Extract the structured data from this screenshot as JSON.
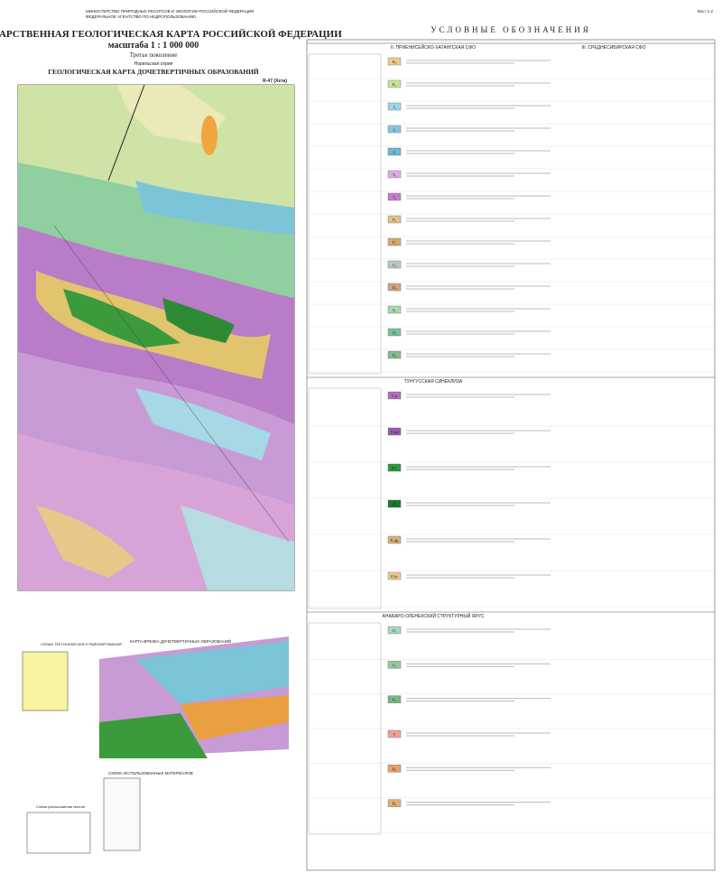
{
  "header": {
    "ministry": "МИНИСТЕРСТВО ПРИРОДНЫХ РЕСУРСОВ И ЭКОЛОГИИ РОССИЙСКОЙ ФЕДЕРАЦИИ",
    "agency": "ФЕДЕРАЛЬНОЕ АГЕНТСТВО ПО НЕДРОПОЛЬЗОВАНИЮ",
    "sheet": "Лист 1-2",
    "title": "ГОСУДАРСТВЕННАЯ ГЕОЛОГИЧЕСКАЯ КАРТА РОССИЙСКОЙ ФЕДЕРАЦИИ",
    "scale": "масштаба 1 : 1 000 000",
    "generation": "Третье поколение",
    "series": "Норильская серия",
    "map_title": "ГЕОЛОГИЧЕСКАЯ КАРТА ДОЧЕТВЕРТИЧНЫХ ОБРАЗОВАНИЙ",
    "sheet_code": "R-47 (Хета)"
  },
  "legend": {
    "title": "УСЛОВНЫЕ ОБОЗНАЧЕНИЯ",
    "sections": [
      {
        "title": "II. ПРИЕНИСЕЙСКО-ХАТАНГСКАЯ СФО",
        "title2": "III. СРЕДНЕСИБИРСКАЯ СФО",
        "rows": [
          {
            "index": "K₂",
            "color": "#f2c98a"
          },
          {
            "index": "K₁",
            "color": "#c6e39a"
          },
          {
            "index": "J₃",
            "color": "#9fd6e8"
          },
          {
            "index": "J₂",
            "color": "#86c6e0"
          },
          {
            "index": "J₁",
            "color": "#6fb5d8"
          },
          {
            "index": "T₃",
            "color": "#d8b0e0"
          },
          {
            "index": "T₁",
            "color": "#c080cc"
          },
          {
            "index": "P₂",
            "color": "#e2c28c"
          },
          {
            "index": "P₁",
            "color": "#d8a870"
          },
          {
            "index": "C₂",
            "color": "#b8c8c8"
          },
          {
            "index": "D₃",
            "color": "#cfa480"
          },
          {
            "index": "S₁",
            "color": "#aad8b0"
          },
          {
            "index": "O₂",
            "color": "#78c0a0"
          },
          {
            "index": "Є₃",
            "color": "#8ab890"
          }
        ]
      },
      {
        "title": "ТУНГУССКАЯ СИНЕКЛИЗА",
        "rows": [
          {
            "index": "T₁tt",
            "color": "#b070c0"
          },
          {
            "index": "T₁nd",
            "color": "#9a5ab0"
          },
          {
            "index": "βT₁",
            "color": "#2f9a40"
          },
          {
            "index": "νT₁",
            "color": "#1f7a30"
          },
          {
            "index": "P₂dg",
            "color": "#d6b47c"
          },
          {
            "index": "P₁br",
            "color": "#e8c890"
          }
        ]
      },
      {
        "title": "АНАБАРО-ОЛЕНЕКСКИЙ СТРУКТУРНЫЙ ЯРУС",
        "rows": [
          {
            "index": "O₁",
            "color": "#a8d8c0"
          },
          {
            "index": "Є₂",
            "color": "#94c7a0"
          },
          {
            "index": "Є₁",
            "color": "#7bb586"
          },
          {
            "index": "V",
            "color": "#f0a0a0"
          },
          {
            "index": "R₃",
            "color": "#e8a070"
          },
          {
            "index": "R₂",
            "color": "#e0b070"
          }
        ]
      }
    ]
  },
  "insets": {
    "tectonic": "СХЕМА ТЕКТОНИЧЕСКОГО РАЙОНИРОВАНИЯ",
    "map": "КАРТА-ВРЕЗКА ДОЧЕТВЕРТИЧНЫХ ОБРАЗОВАНИЙ",
    "materials": "СХЕМА ИСПОЛЬЗОВАННЫХ МАТЕРИАЛОВ",
    "layout": "Схема расположения листов"
  }
}
